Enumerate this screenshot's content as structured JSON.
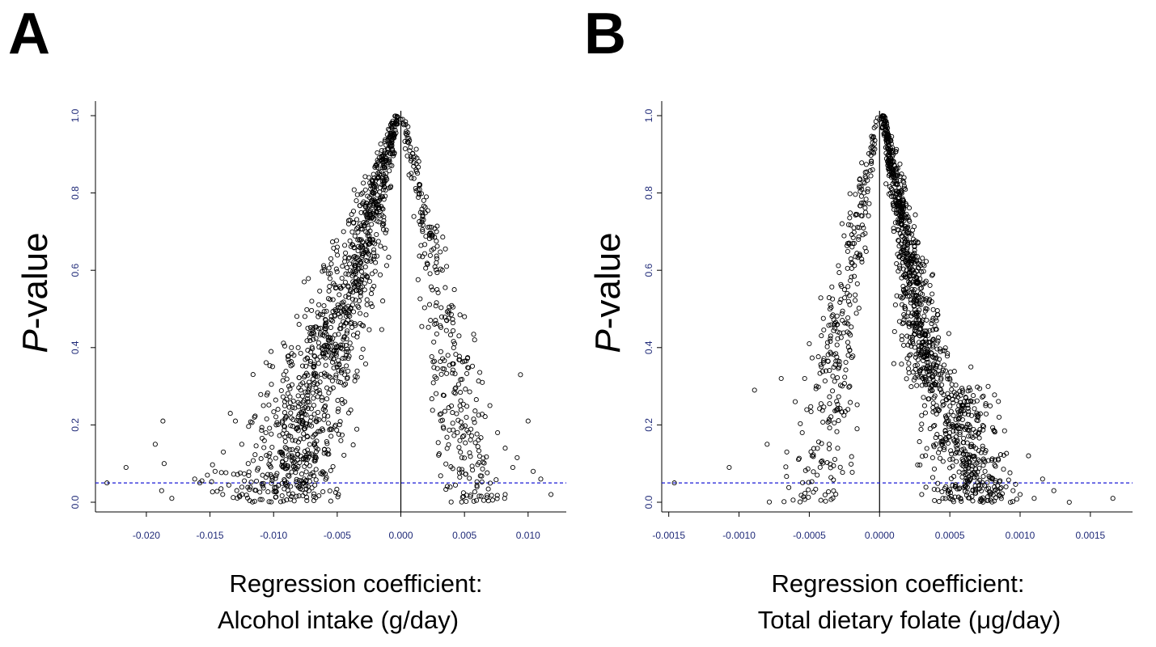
{
  "chart_data": [
    {
      "type": "scatter",
      "panel": "A",
      "ylabel_italic": "P",
      "ylabel_rest": "-value",
      "xlabel_line1": "Regression coefficient:",
      "xlabel_line2": "Alcohol intake (g/day)",
      "xlim": [
        -0.024,
        0.013
      ],
      "ylim": [
        0,
        1
      ],
      "x_ticks": [
        "-0.020",
        "-0.015",
        "-0.010",
        "-0.005",
        "0.000",
        "0.005",
        "0.010"
      ],
      "x_tick_values": [
        -0.02,
        -0.015,
        -0.01,
        -0.005,
        0,
        0.005,
        0.01
      ],
      "y_ticks": [
        "0.0",
        "0.2",
        "0.4",
        "0.6",
        "0.8",
        "1.0"
      ],
      "y_tick_values": [
        0,
        0.2,
        0.4,
        0.6,
        0.8,
        1.0
      ],
      "reference_line_x": 0,
      "significance_line_y": 0.05,
      "significance_line_color": "#1a1ad6",
      "marker": "open-circle",
      "n_points_approx": 1500,
      "points_sampled": [
        [
          -0.0231,
          0.05
        ],
        [
          -0.0216,
          0.09
        ],
        [
          -0.0193,
          0.15
        ],
        [
          -0.0187,
          0.21
        ],
        [
          -0.0186,
          0.1
        ],
        [
          -0.0188,
          0.03
        ],
        [
          -0.018,
          0.01
        ],
        [
          -0.0162,
          0.06
        ],
        [
          -0.0158,
          0.05
        ],
        [
          -0.0152,
          0.07
        ],
        [
          -0.0146,
          0.08
        ],
        [
          -0.014,
          0.02
        ],
        [
          -0.0134,
          0.23
        ],
        [
          -0.013,
          0.21
        ],
        [
          -0.0125,
          0.15
        ],
        [
          -0.012,
          0.1
        ],
        [
          -0.0115,
          0.22
        ],
        [
          -0.0108,
          0.25
        ],
        [
          -0.0102,
          0.39
        ],
        [
          -0.0098,
          0.2
        ],
        [
          -0.0092,
          0.33
        ],
        [
          -0.0088,
          0.3
        ],
        [
          -0.0084,
          0.38
        ],
        [
          -0.008,
          0.46
        ],
        [
          -0.0076,
          0.57
        ],
        [
          -0.007,
          0.52
        ],
        [
          -0.0065,
          0.48
        ],
        [
          -0.006,
          0.6
        ],
        [
          -0.0055,
          0.63
        ],
        [
          -0.005,
          0.66
        ],
        [
          -0.0045,
          0.7
        ],
        [
          -0.004,
          0.73
        ],
        [
          -0.0035,
          0.78
        ],
        [
          -0.003,
          0.8
        ],
        [
          -0.0025,
          0.84
        ],
        [
          -0.002,
          0.87
        ],
        [
          -0.0015,
          0.91
        ],
        [
          -0.001,
          0.94
        ],
        [
          -0.0005,
          0.97
        ],
        [
          0.0,
          0.99
        ],
        [
          0.0006,
          0.93
        ],
        [
          0.0012,
          0.86
        ],
        [
          0.002,
          0.79
        ],
        [
          0.0028,
          0.7
        ],
        [
          0.0036,
          0.61
        ],
        [
          0.0042,
          0.55
        ],
        [
          0.005,
          0.48
        ],
        [
          0.0058,
          0.42
        ],
        [
          0.0064,
          0.31
        ],
        [
          0.007,
          0.25
        ],
        [
          0.0076,
          0.18
        ],
        [
          0.0082,
          0.14
        ],
        [
          0.0088,
          0.09
        ],
        [
          0.0094,
          0.33
        ],
        [
          0.01,
          0.21
        ],
        [
          0.0104,
          0.08
        ],
        [
          0.011,
          0.06
        ],
        [
          0.0118,
          0.02
        ],
        [
          -0.0049,
          0.02
        ],
        [
          0.0082,
          0.02
        ]
      ]
    },
    {
      "type": "scatter",
      "panel": "B",
      "ylabel_italic": "P",
      "ylabel_rest": "-value",
      "xlabel_line1": "Regression coefficient:",
      "xlabel_line2": "Total dietary folate (μg/day)",
      "xlim": [
        -0.00155,
        0.0018
      ],
      "ylim": [
        0,
        1
      ],
      "x_ticks": [
        "-0.0015",
        "-0.0010",
        "-0.0005",
        "0.0000",
        "0.0005",
        "0.0010",
        "0.0015"
      ],
      "x_tick_values": [
        -0.0015,
        -0.001,
        -0.0005,
        0,
        0.0005,
        0.001,
        0.0015
      ],
      "y_ticks": [
        "0.0",
        "0.2",
        "0.4",
        "0.6",
        "0.8",
        "1.0"
      ],
      "y_tick_values": [
        0,
        0.2,
        0.4,
        0.6,
        0.8,
        1.0
      ],
      "reference_line_x": 0,
      "significance_line_y": 0.05,
      "significance_line_color": "#1a1ad6",
      "marker": "open-circle",
      "n_points_approx": 1500,
      "points_sampled": [
        [
          -0.00146,
          0.05
        ],
        [
          -0.00107,
          0.09
        ],
        [
          -0.00089,
          0.29
        ],
        [
          -0.0008,
          0.15
        ],
        [
          -0.0007,
          0.32
        ],
        [
          -0.00066,
          0.13
        ],
        [
          -0.0006,
          0.26
        ],
        [
          -0.00055,
          0.18
        ],
        [
          -0.0005,
          0.41
        ],
        [
          -0.00048,
          0.12
        ],
        [
          -0.00045,
          0.3
        ],
        [
          -0.0004,
          0.36
        ],
        [
          -0.00035,
          0.51
        ],
        [
          -0.0003,
          0.46
        ],
        [
          -0.00025,
          0.55
        ],
        [
          -0.0002,
          0.62
        ],
        [
          -0.00015,
          0.68
        ],
        [
          -0.0001,
          0.75
        ],
        [
          -5e-05,
          0.86
        ],
        [
          0.0,
          0.99
        ],
        [
          5e-05,
          0.93
        ],
        [
          0.0001,
          0.84
        ],
        [
          0.00015,
          0.72
        ],
        [
          0.0002,
          0.63
        ],
        [
          0.00025,
          0.55
        ],
        [
          0.0003,
          0.46
        ],
        [
          0.00035,
          0.38
        ],
        [
          0.0004,
          0.31
        ],
        [
          0.00045,
          0.25
        ],
        [
          0.0005,
          0.18
        ],
        [
          0.00055,
          0.13
        ],
        [
          0.0006,
          0.1
        ],
        [
          0.00065,
          0.35
        ],
        [
          0.0007,
          0.22
        ],
        [
          0.00075,
          0.08
        ],
        [
          0.0008,
          0.06
        ],
        [
          0.00085,
          0.22
        ],
        [
          0.0009,
          0.04
        ],
        [
          0.00095,
          0.03
        ],
        [
          0.001,
          0.02
        ],
        [
          0.00106,
          0.12
        ],
        [
          0.0011,
          0.01
        ],
        [
          0.00116,
          0.06
        ],
        [
          0.00124,
          0.03
        ],
        [
          0.00135,
          0.0
        ],
        [
          0.00166,
          0.01
        ],
        [
          0.0003,
          0.02
        ],
        [
          0.00045,
          0.01
        ]
      ]
    }
  ]
}
